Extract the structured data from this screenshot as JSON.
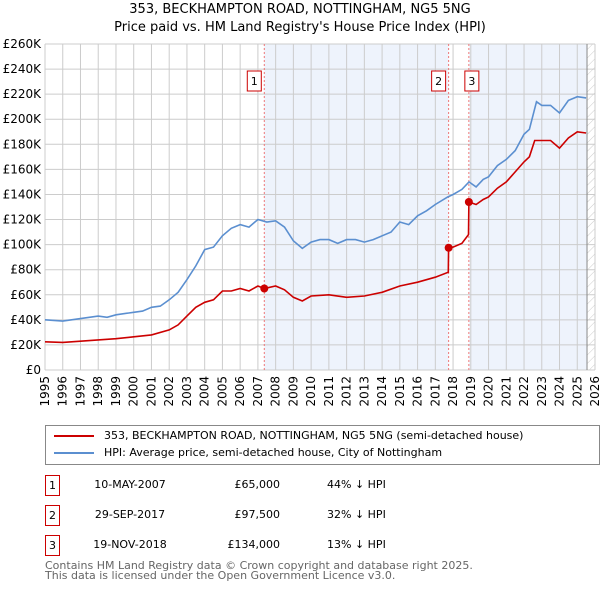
{
  "title": "353, BECKHAMPTON ROAD, NOTTINGHAM, NG5 5NG",
  "subtitle": "Price paid vs. HM Land Registry's House Price Index (HPI)",
  "colors": {
    "price_paid": "#cc0000",
    "hpi": "#5b8fd0",
    "shade": "#eef3fc",
    "grid": "#cccccc"
  },
  "chart_data": {
    "type": "line",
    "title": "353, BECKHAMPTON ROAD, NOTTINGHAM, NG5 5NG",
    "xlim": [
      1995,
      2026
    ],
    "ylim": [
      0,
      260000
    ],
    "x_ticks": [
      "1995",
      "1996",
      "1997",
      "1998",
      "1999",
      "2000",
      "2001",
      "2002",
      "2003",
      "2004",
      "2005",
      "2006",
      "2007",
      "2008",
      "2009",
      "2010",
      "2011",
      "2012",
      "2013",
      "2014",
      "2015",
      "2016",
      "2017",
      "2018",
      "2019",
      "2020",
      "2021",
      "2022",
      "2023",
      "2024",
      "2025",
      "2026"
    ],
    "y_ticks": [
      {
        "v": 0,
        "label": "£0"
      },
      {
        "v": 20000,
        "label": "£20K"
      },
      {
        "v": 40000,
        "label": "£40K"
      },
      {
        "v": 60000,
        "label": "£60K"
      },
      {
        "v": 80000,
        "label": "£80K"
      },
      {
        "v": 100000,
        "label": "£100K"
      },
      {
        "v": 120000,
        "label": "£120K"
      },
      {
        "v": 140000,
        "label": "£140K"
      },
      {
        "v": 160000,
        "label": "£160K"
      },
      {
        "v": 180000,
        "label": "£180K"
      },
      {
        "v": 200000,
        "label": "£200K"
      },
      {
        "v": 220000,
        "label": "£220K"
      },
      {
        "v": 240000,
        "label": "£240K"
      },
      {
        "v": 260000,
        "label": "£260K"
      }
    ],
    "grid": true,
    "data_end": 2025.55,
    "series": [
      {
        "name": "353, BECKHAMPTON ROAD, NOTTINGHAM, NG5 5NG (semi-detached house)",
        "key": "price_paid",
        "x": [
          1995,
          1996,
          1997,
          1998,
          1999,
          2000,
          2001,
          2002,
          2002.5,
          2003,
          2003.5,
          2004,
          2004.5,
          2005,
          2005.5,
          2006,
          2006.5,
          2007,
          2007.36,
          2008,
          2008.5,
          2009,
          2009.5,
          2010,
          2011,
          2012,
          2013,
          2014,
          2015,
          2016,
          2017,
          2017.73,
          2017.75,
          2018,
          2018.5,
          2018.87,
          2018.89,
          2019.3,
          2019.7,
          2020,
          2020.5,
          2021,
          2021.5,
          2022,
          2022.3,
          2022.6,
          2023,
          2023.5,
          2024,
          2024.5,
          2025,
          2025.5
        ],
        "y": [
          22500,
          22000,
          23000,
          24000,
          25000,
          26500,
          28000,
          32000,
          36000,
          43000,
          50000,
          54000,
          56000,
          63000,
          63000,
          65000,
          63000,
          67000,
          65000,
          67000,
          64000,
          58000,
          55000,
          59000,
          60000,
          58000,
          59000,
          62000,
          67000,
          70000,
          74000,
          78000,
          97500,
          98000,
          101000,
          108000,
          134000,
          132000,
          136000,
          138000,
          145000,
          150000,
          158000,
          166000,
          170000,
          183000,
          183000,
          183000,
          177000,
          185000,
          190000,
          189000
        ]
      },
      {
        "name": "HPI: Average price, semi-detached house, City of Nottingham",
        "key": "hpi",
        "x": [
          1995,
          1996,
          1997,
          1998,
          1998.5,
          1999,
          2000,
          2000.5,
          2001,
          2001.5,
          2002,
          2002.5,
          2003,
          2003.5,
          2004,
          2004.5,
          2005,
          2005.5,
          2006,
          2006.5,
          2007,
          2007.5,
          2008,
          2008.5,
          2009,
          2009.5,
          2010,
          2010.5,
          2011,
          2011.5,
          2012,
          2012.5,
          2013,
          2013.5,
          2014,
          2014.5,
          2015,
          2015.5,
          2016,
          2016.5,
          2017,
          2017.7,
          2018,
          2018.5,
          2018.9,
          2019.3,
          2019.7,
          2020,
          2020.5,
          2021,
          2021.5,
          2022,
          2022.3,
          2022.7,
          2023,
          2023.5,
          2024,
          2024.5,
          2025,
          2025.5
        ],
        "y": [
          40000,
          39000,
          41000,
          43000,
          42000,
          44000,
          46000,
          47000,
          50000,
          51000,
          56000,
          62000,
          72000,
          83000,
          96000,
          98000,
          107000,
          113000,
          116000,
          114000,
          120000,
          118000,
          119000,
          114000,
          103000,
          97000,
          102000,
          104000,
          104000,
          101000,
          104000,
          104000,
          102000,
          104000,
          107000,
          110000,
          118000,
          116000,
          123000,
          127000,
          132000,
          138000,
          140000,
          144000,
          150000,
          146000,
          152000,
          154000,
          163000,
          168000,
          175000,
          188000,
          192000,
          214000,
          211000,
          211000,
          205000,
          215000,
          218000,
          217000
        ]
      }
    ],
    "sales": [
      {
        "label": "1",
        "x": 2007.36,
        "y": 65000
      },
      {
        "label": "2",
        "x": 2017.75,
        "y": 97500
      },
      {
        "label": "3",
        "x": 2018.89,
        "y": 134000
      }
    ],
    "legend": "below"
  },
  "legend": {
    "price_paid": "353, BECKHAMPTON ROAD, NOTTINGHAM, NG5 5NG (semi-detached house)",
    "hpi": "HPI: Average price, semi-detached house, City of Nottingham"
  },
  "transactions": [
    {
      "num": "1",
      "date": "10-MAY-2007",
      "price": "£65,000",
      "hpi": "44% ↓ HPI"
    },
    {
      "num": "2",
      "date": "29-SEP-2017",
      "price": "£97,500",
      "hpi": "32% ↓ HPI"
    },
    {
      "num": "3",
      "date": "19-NOV-2018",
      "price": "£134,000",
      "hpi": "13% ↓ HPI"
    }
  ],
  "footer": {
    "line1": "Contains HM Land Registry data © Crown copyright and database right 2025.",
    "line2": "This data is licensed under the Open Government Licence v3.0."
  }
}
